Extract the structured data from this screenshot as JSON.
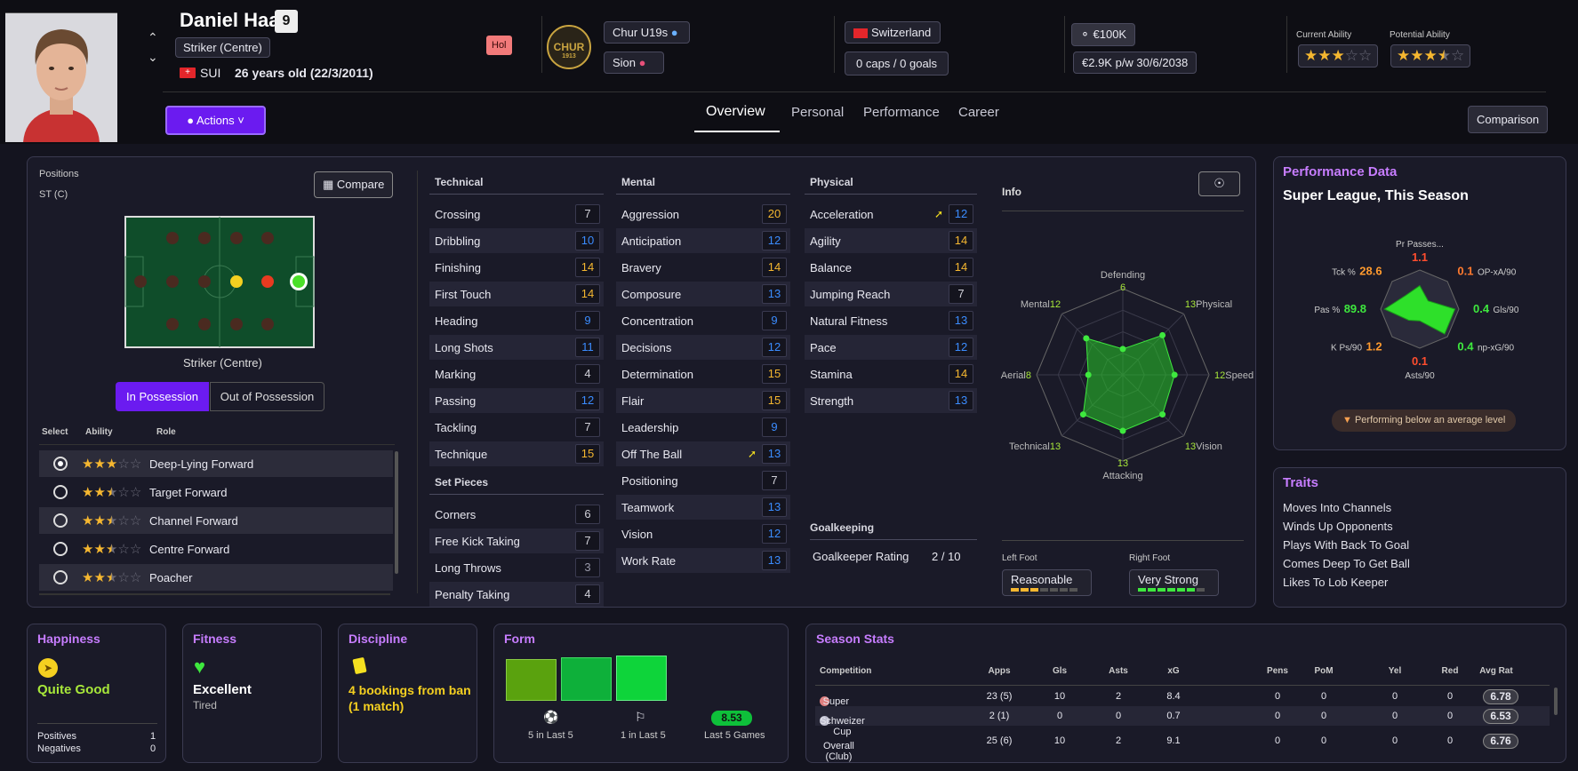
{
  "player": {
    "name": "Daniel Haas",
    "number": "9",
    "position": "Striker (Centre)",
    "nation_code": "SUI",
    "age_text": "26 years old (22/3/2011)",
    "tag": "Hol"
  },
  "clubs": {
    "team": "Chur U19s",
    "loan": "Sion",
    "crest_text": "CHUR",
    "crest_year": "1913"
  },
  "nation": {
    "name": "Switzerland",
    "caps": "0 caps / 0 goals"
  },
  "contract": {
    "value": "€100K",
    "wage": "€2.9K p/w 30/6/2038"
  },
  "ability": {
    "current_label": "Current Ability",
    "potential_label": "Potential Ability",
    "current_stars": 3,
    "potential_stars": 3.5
  },
  "actions_label": "Actions",
  "tabs": [
    "Overview",
    "Personal",
    "Performance",
    "Career"
  ],
  "comparison_label": "Comparison",
  "positions": {
    "title": "Positions",
    "value": "ST (C)",
    "compare_label": "Compare",
    "role_caption": "Striker (Centre)",
    "in_possession": "In Possession",
    "out_possession": "Out of Possession"
  },
  "roles": {
    "headers": {
      "select": "Select",
      "ability": "Ability",
      "role": "Role"
    },
    "items": [
      {
        "name": "Deep-Lying Forward",
        "stars": 3,
        "selected": true
      },
      {
        "name": "Target Forward",
        "stars": 2.5,
        "selected": false
      },
      {
        "name": "Channel Forward",
        "stars": 2.5,
        "selected": false
      },
      {
        "name": "Centre Forward",
        "stars": 2.5,
        "selected": false
      },
      {
        "name": "Poacher",
        "stars": 2.5,
        "selected": false
      }
    ]
  },
  "technical": {
    "title": "Technical",
    "items": [
      {
        "name": "Crossing",
        "value": "7",
        "color": "white"
      },
      {
        "name": "Dribbling",
        "value": "10",
        "color": "blue"
      },
      {
        "name": "Finishing",
        "value": "14",
        "color": "yel"
      },
      {
        "name": "First Touch",
        "value": "14",
        "color": "yel"
      },
      {
        "name": "Heading",
        "value": "9",
        "color": "blue"
      },
      {
        "name": "Long Shots",
        "value": "11",
        "color": "blue"
      },
      {
        "name": "Marking",
        "value": "4",
        "color": "white"
      },
      {
        "name": "Passing",
        "value": "12",
        "color": "blue"
      },
      {
        "name": "Tackling",
        "value": "7",
        "color": "white"
      },
      {
        "name": "Technique",
        "value": "15",
        "color": "yel"
      }
    ]
  },
  "set_pieces": {
    "title": "Set Pieces",
    "items": [
      {
        "name": "Corners",
        "value": "6",
        "color": "white"
      },
      {
        "name": "Free Kick Taking",
        "value": "7",
        "color": "white"
      },
      {
        "name": "Long Throws",
        "value": "3",
        "color": "gray"
      },
      {
        "name": "Penalty Taking",
        "value": "4",
        "color": "white"
      }
    ]
  },
  "mental": {
    "title": "Mental",
    "items": [
      {
        "name": "Aggression",
        "value": "20",
        "color": "yel"
      },
      {
        "name": "Anticipation",
        "value": "12",
        "color": "blue"
      },
      {
        "name": "Bravery",
        "value": "14",
        "color": "yel"
      },
      {
        "name": "Composure",
        "value": "13",
        "color": "blue"
      },
      {
        "name": "Concentration",
        "value": "9",
        "color": "blue"
      },
      {
        "name": "Decisions",
        "value": "12",
        "color": "blue"
      },
      {
        "name": "Determination",
        "value": "15",
        "color": "yel"
      },
      {
        "name": "Flair",
        "value": "15",
        "color": "yel"
      },
      {
        "name": "Leadership",
        "value": "9",
        "color": "blue"
      },
      {
        "name": "Off The Ball",
        "value": "13",
        "color": "blue"
      },
      {
        "name": "Positioning",
        "value": "7",
        "color": "white"
      },
      {
        "name": "Teamwork",
        "value": "13",
        "color": "blue"
      },
      {
        "name": "Vision",
        "value": "12",
        "color": "blue"
      },
      {
        "name": "Work Rate",
        "value": "13",
        "color": "blue"
      }
    ]
  },
  "physical": {
    "title": "Physical",
    "items": [
      {
        "name": "Acceleration",
        "value": "12",
        "color": "blue"
      },
      {
        "name": "Agility",
        "value": "14",
        "color": "yel"
      },
      {
        "name": "Balance",
        "value": "14",
        "color": "yel"
      },
      {
        "name": "Jumping Reach",
        "value": "7",
        "color": "white"
      },
      {
        "name": "Natural Fitness",
        "value": "13",
        "color": "blue"
      },
      {
        "name": "Pace",
        "value": "12",
        "color": "blue"
      },
      {
        "name": "Stamina",
        "value": "14",
        "color": "yel"
      },
      {
        "name": "Strength",
        "value": "13",
        "color": "blue"
      }
    ]
  },
  "goalkeeping": {
    "title": "Goalkeeping",
    "label": "Goalkeeper Rating",
    "value": "2 / 10"
  },
  "info": {
    "title": "Info",
    "radar": [
      {
        "label": "Defending",
        "value": 6
      },
      {
        "label": "Physical",
        "value": 13
      },
      {
        "label": "Speed",
        "value": 12
      },
      {
        "label": "Vision",
        "value": 13
      },
      {
        "label": "Attacking",
        "value": 13
      },
      {
        "label": "Technical",
        "value": 13
      },
      {
        "label": "Aerial",
        "value": 8
      },
      {
        "label": "Mental",
        "value": 12
      }
    ],
    "left_foot_label": "Left Foot",
    "left_foot": "Reasonable",
    "left_level": 3,
    "right_foot_label": "Right Foot",
    "right_foot": "Very Strong",
    "right_level": 6
  },
  "performance": {
    "title": "Performance Data",
    "subtitle": "Super League, This Season",
    "note": "Performing below an average level",
    "metrics": [
      {
        "label": "Pr Passes...",
        "value": "1.1",
        "color": "#ff4d2e"
      },
      {
        "label": "OP-xA/90",
        "value": "0.1",
        "color": "#ff7a2e"
      },
      {
        "label": "Gls/90",
        "value": "0.4",
        "color": "#3ee83e"
      },
      {
        "label": "np-xG/90",
        "value": "0.4",
        "color": "#3ee83e"
      },
      {
        "label": "Asts/90",
        "value": "0.1",
        "color": "#ff4d2e"
      },
      {
        "label": "K Ps/90",
        "value": "1.2",
        "color": "#ff9a2e"
      },
      {
        "label": "Pas %",
        "value": "89.8",
        "color": "#3ee83e"
      },
      {
        "label": "Tck %",
        "value": "28.6",
        "color": "#ff9a2e"
      }
    ]
  },
  "traits": {
    "title": "Traits",
    "items": [
      "Moves Into Channels",
      "Winds Up Opponents",
      "Plays With Back To Goal",
      "Comes Deep To Get Ball",
      "Likes To Lob Keeper"
    ]
  },
  "happiness": {
    "title": "Happiness",
    "status": "Quite Good",
    "positives_label": "Positives",
    "positives": "1",
    "negatives_label": "Negatives",
    "negatives": "0"
  },
  "fitness": {
    "title": "Fitness",
    "status": "Excellent",
    "sub": "Tired"
  },
  "discipline": {
    "title": "Discipline",
    "status": "4 bookings from ban (1 match)"
  },
  "form": {
    "title": "Form",
    "goals_text": "5 in Last 5",
    "assists_text": "1 in Last 5",
    "rating": "8.53",
    "rating_text": "Last 5 Games"
  },
  "season": {
    "title": "Season Stats",
    "headers": [
      "Competition",
      "Apps",
      "Gls",
      "Asts",
      "xG",
      "Pens",
      "PoM",
      "Yel",
      "Red",
      "Avg Rat"
    ],
    "rows": [
      [
        "Super League",
        "23 (5)",
        "10",
        "2",
        "8.4",
        "0",
        "0",
        "0",
        "0",
        "6.78"
      ],
      [
        "Schweizer Cup",
        "2 (1)",
        "0",
        "0",
        "0.7",
        "0",
        "0",
        "0",
        "0",
        "6.53"
      ],
      [
        "Overall (Club)",
        "25 (6)",
        "10",
        "2",
        "9.1",
        "0",
        "0",
        "0",
        "0",
        "6.76"
      ]
    ]
  }
}
